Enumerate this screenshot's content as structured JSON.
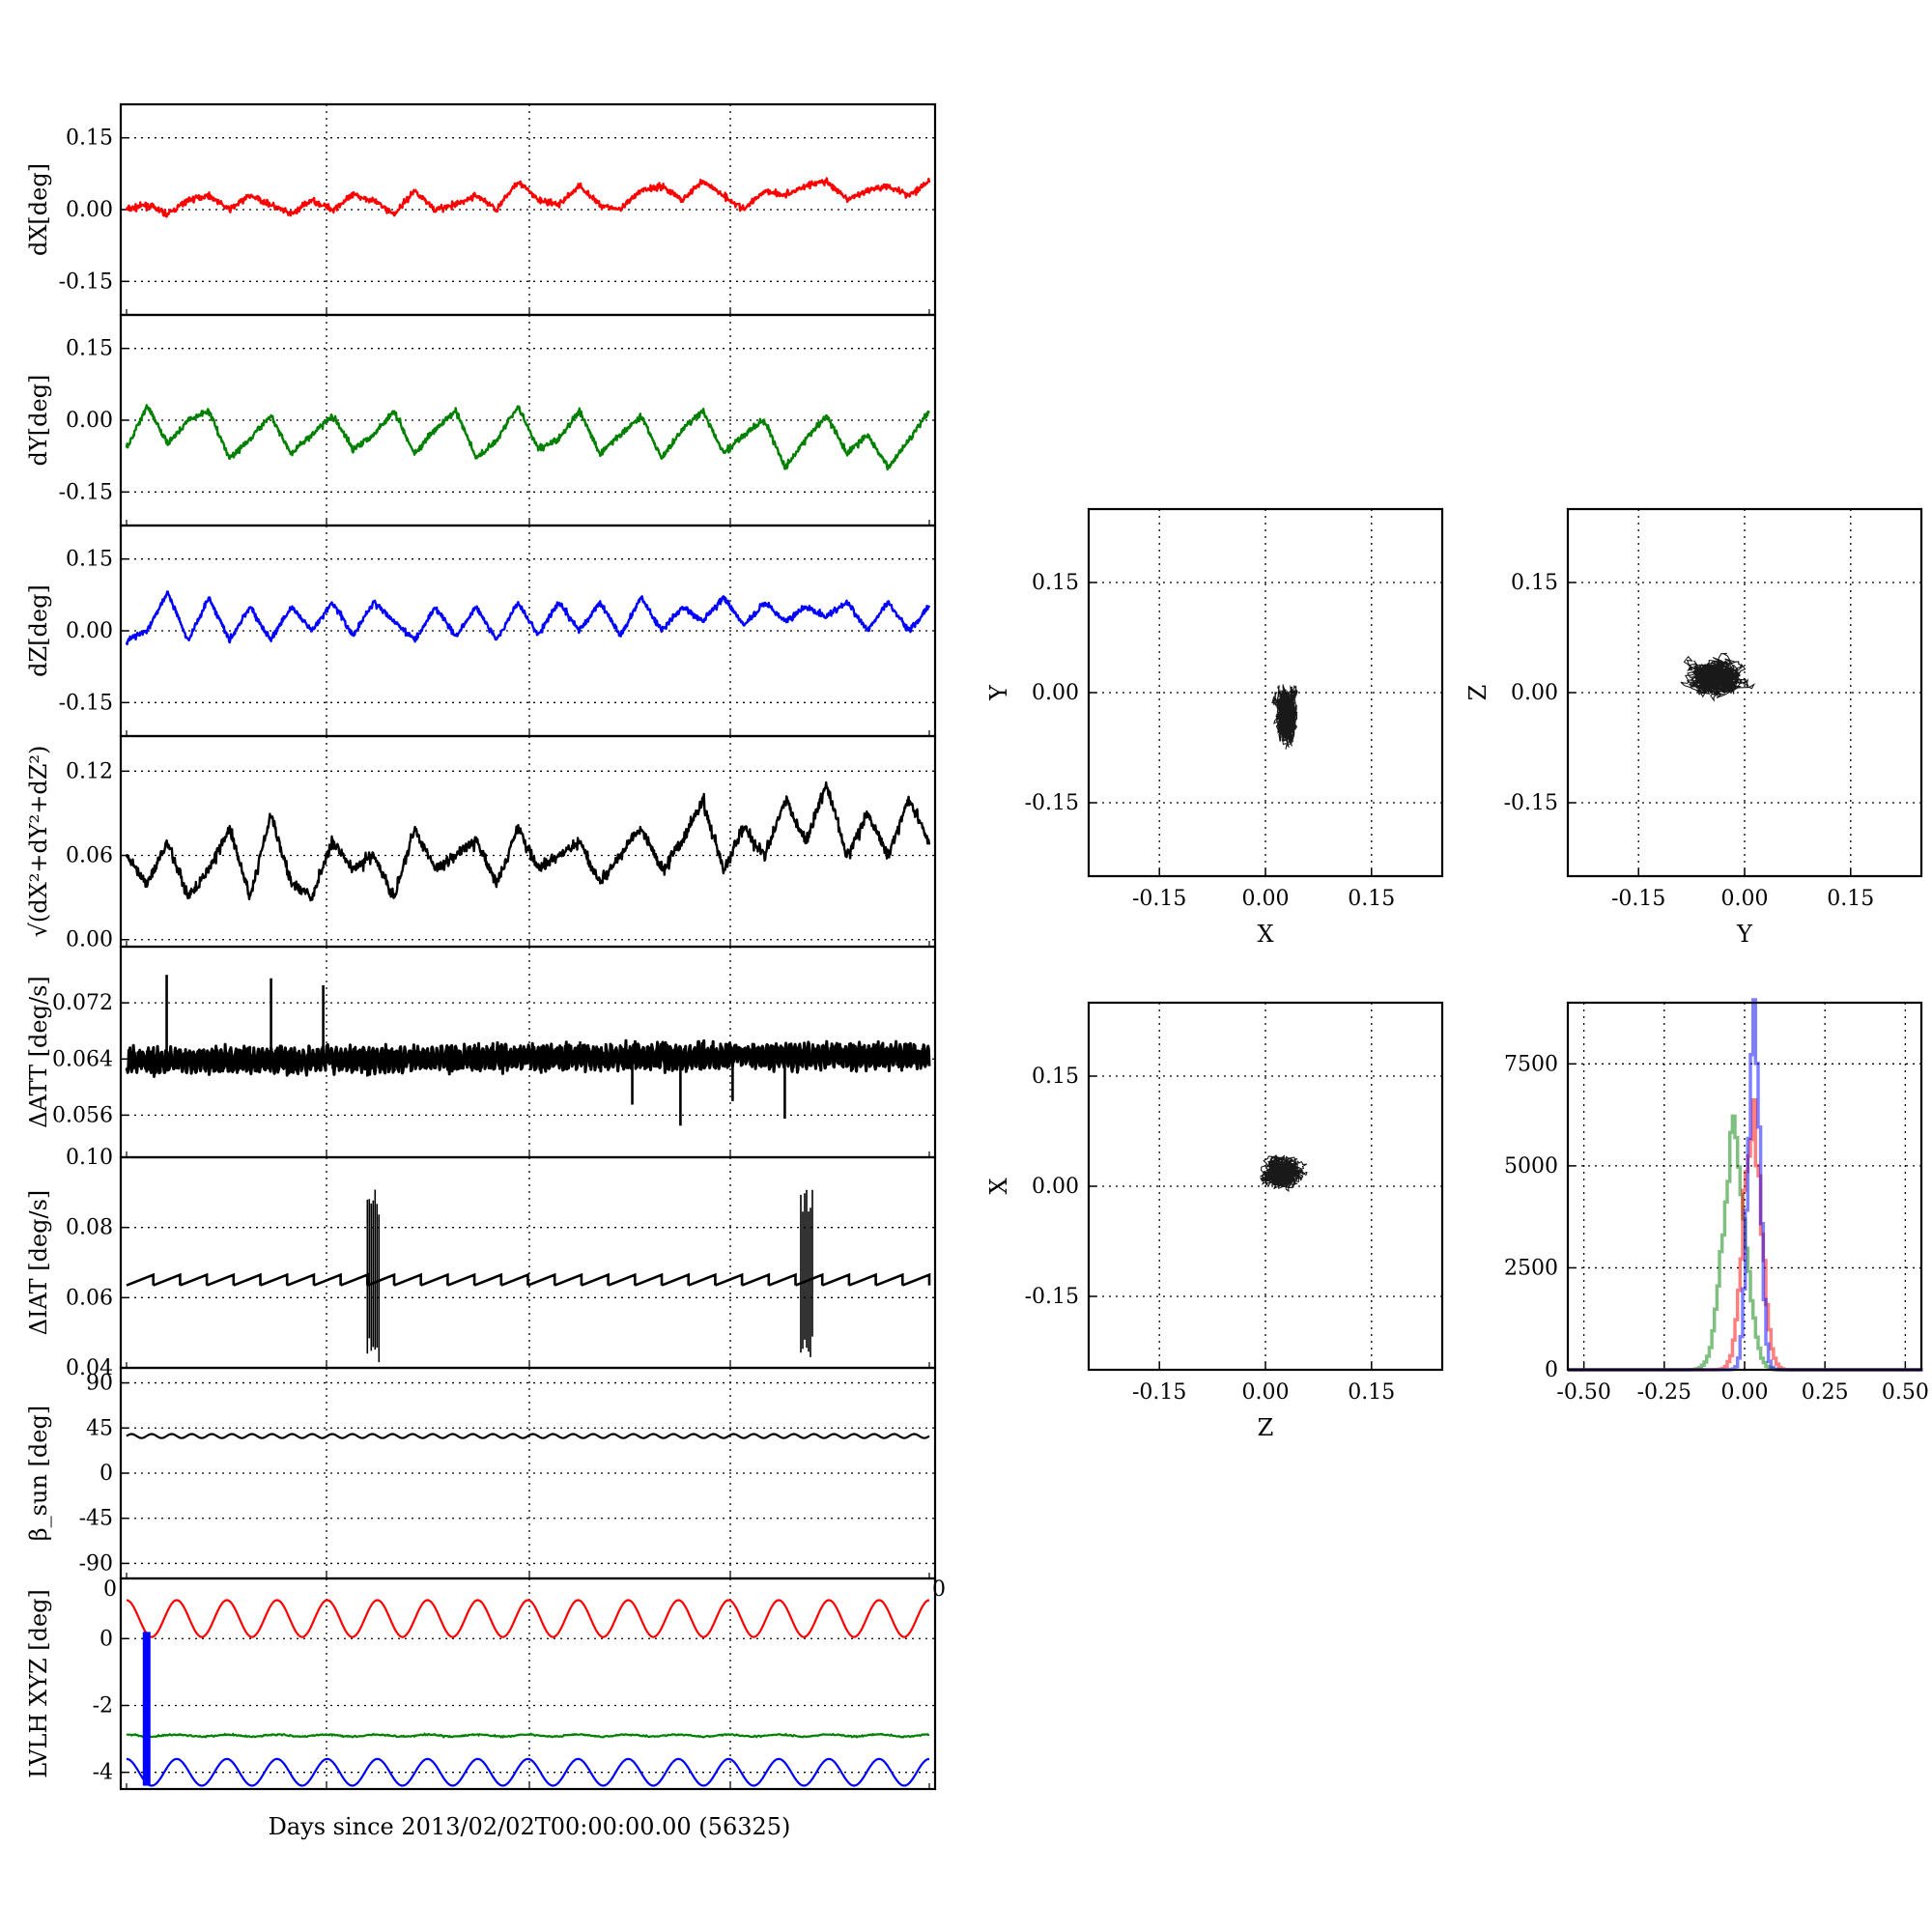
{
  "xaxis_label": "Days since 2013/02/02T00:00:00.00 (56325)",
  "colors": {
    "red": "#ff0000",
    "green": "#008000",
    "blue": "#0000ff",
    "black": "#000000"
  },
  "chart_data": [
    {
      "id": "dX",
      "type": "line",
      "ylabel": "dX[deg]",
      "ylim": [
        -0.22,
        0.22
      ],
      "yticks": [
        "0.15",
        "0.00",
        "-0.15"
      ],
      "ytick_values": [
        0.15,
        0.0,
        -0.15
      ],
      "grid": true,
      "color": "red",
      "series": [
        {
          "values": [
            0.0,
            0.01,
            -0.01,
            0.02,
            0.03,
            0.0,
            0.03,
            0.01,
            -0.01,
            0.02,
            0.0,
            0.03,
            0.02,
            -0.01,
            0.04,
            0.0,
            0.01,
            0.03,
            0.0,
            0.06,
            0.02,
            0.01,
            0.05,
            0.01,
            0.0,
            0.04,
            0.05,
            0.02,
            0.06,
            0.03,
            0.0,
            0.04,
            0.03,
            0.05,
            0.06,
            0.02,
            0.04,
            0.05,
            0.03,
            0.06
          ]
        }
      ]
    },
    {
      "id": "dY",
      "type": "line",
      "ylabel": "dY[deg]",
      "ylim": [
        -0.22,
        0.22
      ],
      "yticks": [
        "0.15",
        "0.00",
        "-0.15"
      ],
      "ytick_values": [
        0.15,
        0.0,
        -0.15
      ],
      "grid": true,
      "color": "green",
      "series": [
        {
          "values": [
            -0.06,
            0.03,
            -0.05,
            0.0,
            0.02,
            -0.08,
            -0.04,
            0.01,
            -0.07,
            -0.03,
            0.01,
            -0.06,
            -0.03,
            0.02,
            -0.07,
            -0.02,
            0.02,
            -0.08,
            -0.04,
            0.03,
            -0.06,
            -0.04,
            0.02,
            -0.07,
            -0.03,
            0.01,
            -0.08,
            -0.02,
            0.02,
            -0.07,
            -0.03,
            0.0,
            -0.1,
            -0.04,
            0.01,
            -0.07,
            -0.03,
            -0.1,
            -0.04,
            0.02
          ]
        }
      ]
    },
    {
      "id": "dZ",
      "type": "line",
      "ylabel": "dZ[deg]",
      "ylim": [
        -0.22,
        0.22
      ],
      "yticks": [
        "0.15",
        "0.00",
        "-0.15"
      ],
      "ytick_values": [
        0.15,
        0.0,
        -0.15
      ],
      "grid": true,
      "color": "blue",
      "series": [
        {
          "values": [
            -0.02,
            0.0,
            0.08,
            -0.02,
            0.07,
            -0.02,
            0.05,
            -0.02,
            0.05,
            0.0,
            0.06,
            -0.01,
            0.06,
            0.02,
            -0.02,
            0.05,
            -0.01,
            0.05,
            -0.02,
            0.06,
            -0.01,
            0.06,
            0.0,
            0.06,
            -0.01,
            0.07,
            0.0,
            0.05,
            0.02,
            0.07,
            0.01,
            0.06,
            0.02,
            0.05,
            0.03,
            0.06,
            0.0,
            0.06,
            0.0,
            0.05
          ]
        }
      ]
    },
    {
      "id": "rss",
      "type": "line",
      "ylabel": "√(dX²+dY²+dZ²)",
      "ylim": [
        -0.005,
        0.145
      ],
      "yticks": [
        "0.12",
        "0.06",
        "0.00"
      ],
      "ytick_values": [
        0.12,
        0.06,
        0.0
      ],
      "grid": true,
      "color": "black",
      "series": [
        {
          "values": [
            0.06,
            0.04,
            0.07,
            0.03,
            0.05,
            0.08,
            0.03,
            0.09,
            0.04,
            0.03,
            0.07,
            0.05,
            0.06,
            0.03,
            0.08,
            0.05,
            0.06,
            0.07,
            0.04,
            0.08,
            0.05,
            0.06,
            0.07,
            0.04,
            0.06,
            0.08,
            0.05,
            0.07,
            0.1,
            0.05,
            0.08,
            0.06,
            0.1,
            0.07,
            0.11,
            0.06,
            0.09,
            0.06,
            0.1,
            0.07
          ]
        }
      ]
    },
    {
      "id": "datt",
      "type": "line",
      "ylabel": "ΔATT [deg/s]",
      "ylim": [
        0.05,
        0.08
      ],
      "yticks": [
        "0.072",
        "0.064",
        "0.056"
      ],
      "ytick_values": [
        0.072,
        0.064,
        0.056
      ],
      "extra_tick": "0.10",
      "grid": true,
      "color": "black",
      "series": [
        {
          "values": [
            0.0637,
            0.0637,
            0.0638,
            0.0637,
            0.0638,
            0.0638,
            0.0639,
            0.0638,
            0.0639,
            0.0639,
            0.064,
            0.0639,
            0.064,
            0.064,
            0.0641,
            0.064,
            0.0641,
            0.0641,
            0.0642,
            0.0641,
            0.0642,
            0.0642,
            0.0643,
            0.0642,
            0.0643,
            0.0643,
            0.0644,
            0.0643,
            0.0644,
            0.0644,
            0.0645,
            0.0644,
            0.0645,
            0.0644,
            0.0645,
            0.0644,
            0.0644,
            0.0644,
            0.0643,
            0.0643
          ]
        }
      ],
      "spikes": [
        {
          "x": 0.05,
          "y": 0.076
        },
        {
          "x": 0.18,
          "y": 0.0755
        },
        {
          "x": 0.245,
          "y": 0.0745
        },
        {
          "x": 0.3,
          "y": 0.0615
        },
        {
          "x": 0.565,
          "y": 0.0665
        },
        {
          "x": 0.63,
          "y": 0.0575
        },
        {
          "x": 0.69,
          "y": 0.0545
        },
        {
          "x": 0.755,
          "y": 0.058
        },
        {
          "x": 0.82,
          "y": 0.0555
        },
        {
          "x": 0.87,
          "y": 0.0658
        }
      ]
    },
    {
      "id": "diat",
      "type": "line",
      "ylabel": "ΔIAT [deg/s]",
      "ylim": [
        0.04,
        0.1
      ],
      "yticks": [
        "0.08",
        "0.06",
        "0.04"
      ],
      "ytick_values": [
        0.08,
        0.06,
        0.04
      ],
      "grid": true,
      "color": "black",
      "series": [
        {
          "values": [
            0.0635,
            0.066,
            0.0635,
            0.066,
            0.0635,
            0.066,
            0.0635,
            0.066,
            0.0635,
            0.066,
            0.0635,
            0.066,
            0.0635,
            0.066,
            0.0635,
            0.066,
            0.0635,
            0.066,
            0.0635,
            0.066,
            0.0635,
            0.066,
            0.0635,
            0.066,
            0.0635,
            0.066,
            0.0635,
            0.066,
            0.0635,
            0.066
          ]
        }
      ],
      "bursts": [
        {
          "x_start": 0.3,
          "x_end": 0.315,
          "y_min": 0.041,
          "y_max": 0.091
        },
        {
          "x_start": 0.84,
          "x_end": 0.855,
          "y_min": 0.041,
          "y_max": 0.091
        }
      ]
    },
    {
      "id": "beta",
      "type": "line",
      "ylabel": "β_sun [deg]",
      "ylim": [
        -105,
        105
      ],
      "yticks": [
        "90",
        "45",
        "0",
        "-45",
        "-90"
      ],
      "ytick_values": [
        90,
        45,
        0,
        -45,
        -90
      ],
      "grid": true,
      "color": "black",
      "series": [
        {
          "mean": 37,
          "amplitude": 2,
          "cycles": 40
        }
      ]
    },
    {
      "id": "lvlh",
      "type": "line",
      "ylabel": "LVLH XYZ [deg]",
      "ylim": [
        -4.5,
        1.8
      ],
      "yticks": [
        "0",
        "-2",
        "-4"
      ],
      "ytick_values": [
        0,
        -2,
        -4
      ],
      "corner_ticks": [
        "0",
        "0"
      ],
      "grid": true,
      "series": [
        {
          "color": "red",
          "mean": 0.6,
          "amplitude": 0.55,
          "cycles": 16
        },
        {
          "color": "green",
          "mean": -2.9,
          "amplitude": 0.03,
          "cycles": 16
        },
        {
          "color": "blue",
          "mean": -4.0,
          "amplitude": 0.4,
          "cycles": 16
        }
      ],
      "jump": {
        "x": 0.025,
        "y_from": 0.2,
        "y_to": -4.4,
        "color": "blue"
      }
    },
    {
      "id": "xy",
      "type": "scatter",
      "xlabel": "X",
      "ylabel": "Y",
      "xlim": [
        -0.25,
        0.25
      ],
      "ylim": [
        -0.25,
        0.25
      ],
      "xticks": [
        "-0.15",
        "0.00",
        "0.15"
      ],
      "yticks": [
        "0.15",
        "0.00",
        "-0.15"
      ],
      "tick_values": [
        -0.15,
        0.0,
        0.15
      ],
      "grid": true,
      "cloud": {
        "center": [
          0.03,
          -0.03
        ],
        "spread": [
          0.025,
          0.06
        ]
      }
    },
    {
      "id": "yz",
      "type": "scatter",
      "xlabel": "Y",
      "ylabel": "Z",
      "xlim": [
        -0.25,
        0.25
      ],
      "ylim": [
        -0.25,
        0.25
      ],
      "xticks": [
        "-0.15",
        "0.00",
        "0.15"
      ],
      "yticks": [
        "0.15",
        "0.00",
        "-0.15"
      ],
      "tick_values": [
        -0.15,
        0.0,
        0.15
      ],
      "grid": true,
      "cloud": {
        "center": [
          -0.04,
          0.02
        ],
        "spread": [
          0.06,
          0.04
        ]
      }
    },
    {
      "id": "zx",
      "type": "scatter",
      "xlabel": "Z",
      "ylabel": "X",
      "xlim": [
        -0.25,
        0.25
      ],
      "ylim": [
        -0.25,
        0.25
      ],
      "xticks": [
        "-0.15",
        "0.00",
        "0.15"
      ],
      "yticks": [
        "0.15",
        "0.00",
        "-0.15"
      ],
      "tick_values": [
        -0.15,
        0.0,
        0.15
      ],
      "grid": true,
      "cloud": {
        "center": [
          0.02,
          0.02
        ],
        "spread": [
          0.045,
          0.035
        ]
      }
    },
    {
      "id": "hist",
      "type": "histogram",
      "xlim": [
        -0.55,
        0.55
      ],
      "ylim": [
        0,
        9000
      ],
      "xticks": [
        "-0.50",
        "-0.25",
        "0.00",
        "0.25",
        "0.50"
      ],
      "xtick_values": [
        -0.5,
        -0.25,
        0,
        0.25,
        0.5
      ],
      "yticks": [
        "7500",
        "5000",
        "2500",
        "0"
      ],
      "ytick_values": [
        7500,
        5000,
        2500,
        0
      ],
      "grid": true,
      "series": [
        {
          "color": "green",
          "mean": -0.035,
          "sd": 0.035,
          "peak": 5700
        },
        {
          "color": "red",
          "mean": 0.02,
          "sd": 0.028,
          "peak": 6200
        },
        {
          "color": "blue",
          "mean": 0.025,
          "sd": 0.018,
          "peak": 8800
        }
      ]
    }
  ]
}
